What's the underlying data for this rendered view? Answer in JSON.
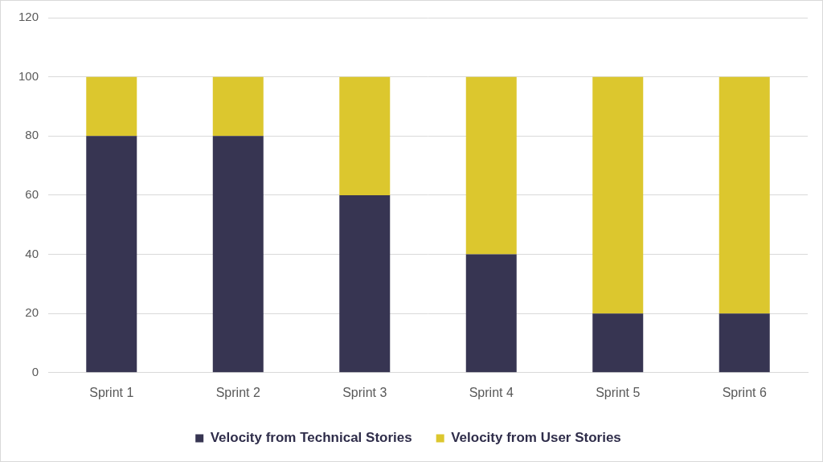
{
  "chart_data": {
    "type": "bar",
    "categories": [
      "Sprint 1",
      "Sprint 2",
      "Sprint 3",
      "Sprint 4",
      "Sprint 5",
      "Sprint 6"
    ],
    "series": [
      {
        "name": "Velocity from Technical Stories",
        "color": "#373552",
        "values": [
          80,
          80,
          60,
          40,
          20,
          20
        ]
      },
      {
        "name": "Velocity from User Stories",
        "color": "#dcc72e",
        "values": [
          20,
          20,
          40,
          60,
          80,
          80
        ]
      }
    ],
    "stacked": true,
    "ylim": [
      0,
      120
    ],
    "yticks": [
      0,
      20,
      40,
      60,
      80,
      100,
      120
    ],
    "grid": true,
    "legend": "bottom"
  }
}
